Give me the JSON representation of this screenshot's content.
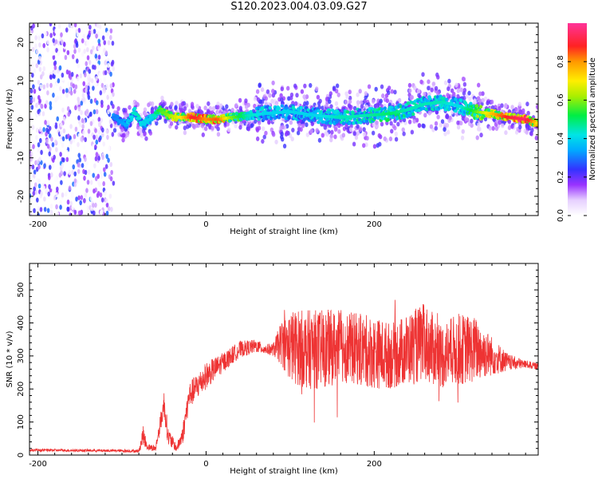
{
  "title": "S120.2023.004.03.09.G27",
  "chart_data": [
    {
      "type": "heatmap",
      "xlabel": "Height of straight line (km)",
      "ylabel": "Frequency (Hz)",
      "xlim": [
        -210,
        395
      ],
      "ylim": [
        -25,
        25
      ],
      "xticks": [
        -200,
        0,
        200
      ],
      "yticks": [
        -20,
        -10,
        0,
        10,
        20
      ],
      "colorbar": {
        "label": "Normalized spectral amplitude",
        "range": [
          0,
          1
        ],
        "ticks": [
          0.0,
          0.2,
          0.4,
          0.6,
          0.8
        ]
      },
      "frequency_ridge": {
        "x": [
          -110,
          -95,
          -85,
          -75,
          -65,
          -55,
          -45,
          -30,
          -15,
          0,
          15,
          30,
          50,
          70,
          100,
          130,
          160,
          190,
          220,
          240,
          260,
          280,
          300,
          320,
          340,
          360,
          380,
          395
        ],
        "freq": [
          0.5,
          -1.5,
          2.0,
          -1.5,
          0.5,
          2.5,
          1.0,
          0.5,
          0.5,
          0.0,
          0.0,
          0.5,
          1.0,
          1.5,
          2.0,
          1.0,
          0.5,
          1.0,
          1.5,
          2.5,
          4.0,
          4.5,
          3.5,
          2.0,
          1.5,
          0.5,
          0.0,
          -1.0
        ],
        "amplitude": [
          0.3,
          0.35,
          0.45,
          0.4,
          0.4,
          0.55,
          0.6,
          0.7,
          0.9,
          0.8,
          0.85,
          0.6,
          0.45,
          0.4,
          0.4,
          0.4,
          0.45,
          0.45,
          0.5,
          0.45,
          0.45,
          0.45,
          0.4,
          0.55,
          0.75,
          0.9,
          0.95,
          0.7
        ]
      },
      "noise_region_x": [
        -210,
        -110
      ]
    },
    {
      "type": "line",
      "xlabel": "Height of straight line (km)",
      "ylabel": "SNR (10 * v/v)",
      "xlim": [
        -210,
        395
      ],
      "ylim": [
        0,
        580
      ],
      "xticks": [
        -200,
        0,
        200
      ],
      "yticks": [
        0,
        100,
        200,
        300,
        400,
        500
      ],
      "color": "#ee3333",
      "series": [
        {
          "x": [
            -210,
            -150,
            -100,
            -80,
            -75,
            -70,
            -60,
            -50,
            -45,
            -35,
            -28,
            -20,
            -10,
            0,
            20,
            40,
            60,
            70,
            80,
            90,
            100,
            120,
            140,
            160,
            180,
            200,
            220,
            240,
            260,
            280,
            300,
            320,
            340,
            360,
            380,
            395
          ],
          "y": [
            15,
            14,
            13,
            12,
            60,
            25,
            20,
            155,
            55,
            20,
            60,
            180,
            210,
            240,
            280,
            320,
            330,
            320,
            320,
            340,
            330,
            320,
            320,
            330,
            320,
            310,
            300,
            320,
            340,
            300,
            320,
            320,
            300,
            280,
            275,
            268
          ],
          "spread": [
            4,
            4,
            4,
            5,
            30,
            10,
            10,
            40,
            30,
            10,
            30,
            40,
            40,
            40,
            30,
            25,
            20,
            15,
            20,
            70,
            110,
            120,
            120,
            110,
            110,
            110,
            100,
            110,
            120,
            100,
            110,
            100,
            60,
            25,
            12,
            10
          ]
        }
      ]
    }
  ]
}
